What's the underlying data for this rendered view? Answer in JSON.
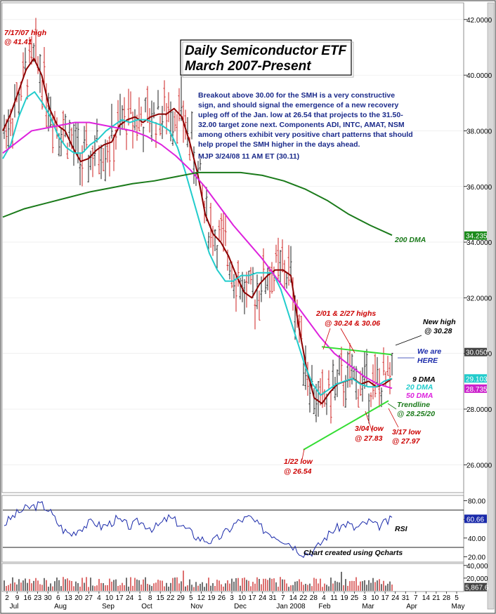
{
  "chart_data": {
    "type": "line",
    "title_line1": "Daily Semiconductor ETF",
    "title_line2": "March 2007-Present",
    "commentary": [
      "Breakout above 30.00 for the SMH is a very constructive",
      "sign, and should signal the emergence of a new recovery",
      "upleg off of the Jan. low at 26.54 that projects to the 31.50-",
      "32.00 target zone next.  Components ADI, INTC, AMAT, NSM",
      "among others exhibit very positive chart patterns that should",
      "help propel the SMH higher in the days ahead.",
      " MJP  3/24/08  11 AM ET  (30.11)"
    ],
    "price_axis": {
      "ylim": [
        25.0,
        42.6
      ],
      "ticks": [
        26,
        28,
        30,
        32,
        34,
        36,
        38,
        40,
        42
      ],
      "tick_labels": [
        "26.0000",
        "28.0000",
        "30.0000",
        "32.0000",
        "34.0000",
        "36.0000",
        "38.0000",
        "40.0000",
        "42.0000"
      ]
    },
    "price_tags": [
      {
        "label": "34.235",
        "value": 34.235,
        "color": "#1a8a1a"
      },
      {
        "label": "30.050",
        "value": 30.05,
        "color": "#444444"
      },
      {
        "label": "29.103",
        "value": 29.103,
        "color": "#22cccc"
      },
      {
        "label": "28.735",
        "value": 28.735,
        "color": "#cc22cc"
      }
    ],
    "x_tick_labels": [
      "2",
      "9",
      "16",
      "23",
      "30",
      "6",
      "13",
      "20",
      "27",
      "4",
      "10",
      "17",
      "24",
      "1",
      "8",
      "15",
      "22",
      "29",
      "5",
      "12",
      "19",
      "26",
      "3",
      "10",
      "17",
      "24",
      "31",
      "7",
      "14",
      "22",
      "28",
      "4",
      "11",
      "19",
      "25",
      "3",
      "10",
      "17",
      "24",
      "31",
      "7",
      "14",
      "21",
      "28",
      "5"
    ],
    "month_labels": [
      "Jul",
      "Aug",
      "Sep",
      "Oct",
      "Nov",
      "Dec",
      "Jan 2008",
      "Feb",
      "Mar",
      "Apr",
      "May"
    ],
    "series": [
      {
        "name": "9 DMA",
        "color": "#8b0000",
        "values": [
          38.0,
          38.6,
          39.4,
          40.2,
          40.6,
          40.0,
          38.8,
          38.2,
          38.0,
          37.4,
          36.9,
          37.0,
          37.3,
          37.5,
          37.6,
          38.2,
          38.4,
          38.5,
          38.3,
          38.5,
          38.6,
          38.6,
          38.8,
          38.5,
          37.6,
          36.5,
          35.0,
          34.3,
          34.0,
          33.5,
          32.8,
          32.2,
          32.0,
          32.5,
          32.8,
          33.0,
          33.0,
          32.8,
          31.0,
          29.5,
          28.4,
          28.2,
          28.6,
          28.9,
          29.0,
          29.1,
          28.9,
          29.0,
          28.8,
          28.9,
          29.1
        ]
      },
      {
        "name": "20 DMA",
        "color": "#22cccc",
        "values": [
          37.0,
          37.5,
          38.5,
          39.2,
          39.4,
          39.0,
          38.5,
          37.8,
          37.4,
          37.2,
          37.2,
          37.5,
          37.7,
          38.0,
          38.2,
          38.4,
          38.3,
          38.4,
          38.4,
          38.3,
          38.2,
          38.0,
          37.4,
          36.5,
          35.5,
          34.5,
          33.6,
          33.0,
          32.6,
          32.6,
          32.8,
          32.8,
          32.9,
          32.9,
          32.9,
          32.3,
          31.4,
          30.5,
          29.6,
          28.9,
          28.5,
          28.7,
          28.9,
          29.0,
          29.1,
          28.9,
          28.8,
          28.8,
          29.0,
          29.1
        ]
      },
      {
        "name": "50 DMA",
        "color": "#dd22dd",
        "values": [
          37.2,
          37.6,
          38.0,
          38.1,
          38.2,
          38.3,
          38.3,
          38.2,
          38.1,
          38.0,
          37.8,
          37.5,
          37.1,
          36.6,
          36.0,
          35.3,
          34.6,
          34.0,
          33.4,
          32.7,
          32.0,
          31.3,
          30.6,
          30.0,
          29.6,
          29.2,
          28.9,
          28.75
        ]
      },
      {
        "name": "200 DMA",
        "color": "#1a7a1a",
        "values": [
          34.9,
          35.2,
          35.4,
          35.6,
          35.8,
          35.95,
          36.1,
          36.2,
          36.35,
          36.5,
          36.5,
          36.5,
          36.4,
          36.2,
          35.9,
          35.5,
          35.0,
          34.6,
          34.25
        ]
      }
    ],
    "trendlines": [
      {
        "name": "upper",
        "color": "#33dd33",
        "from": [
          30.24
        ],
        "to": [
          29.96
        ]
      },
      {
        "name": "Trendline",
        "color": "#33dd33",
        "from": [
          26.54
        ],
        "to": [
          28.3
        ]
      }
    ],
    "annotations": {
      "high_0717": [
        "7/17/07 high",
        "@ 41.41"
      ],
      "highs_feb": [
        "2/01 & 2/27 highs",
        "@ 30.24 & 30.06"
      ],
      "new_high": [
        "New high",
        "@ 30.28"
      ],
      "we_are_here": [
        "We are",
        "HERE"
      ],
      "dma9": "9 DMA",
      "dma20": "20 DMA",
      "dma50": "50 DMA",
      "dma200": "200 DMA",
      "trendline": [
        "Trendline",
        "@ 28.25/20"
      ],
      "low_0304": [
        "3/04 low",
        "@ 27.83"
      ],
      "low_0317": [
        "3/17 low",
        "@ 27.97"
      ],
      "low_0122": [
        "1/22 low",
        "@ 26.54"
      ]
    },
    "rsi": {
      "label": "RSI",
      "ylim": [
        15,
        85
      ],
      "ticks": [
        20,
        40,
        60,
        80
      ],
      "tick_labels": [
        "20.00",
        "40.00",
        "60.00",
        "80.00"
      ],
      "current_label": "60.66",
      "current": 60.66,
      "values": [
        55,
        62,
        68,
        72,
        74,
        76,
        70,
        58,
        48,
        44,
        50,
        54,
        58,
        52,
        55,
        60,
        56,
        52,
        58,
        54,
        50,
        55,
        62,
        58,
        52,
        46,
        40,
        38,
        36,
        42,
        48,
        56,
        60,
        62,
        54,
        48,
        44,
        40,
        36,
        30,
        24,
        24,
        30,
        40,
        48,
        52,
        56,
        50,
        54,
        58,
        52,
        56,
        60
      ]
    },
    "credit": "Chart created using Qcharts",
    "volume": {
      "ylim": [
        0,
        42000
      ],
      "ticks": [
        20000,
        40000
      ],
      "tick_labels": [
        "20,000",
        "40,000"
      ],
      "current_label": "5,867.6",
      "current": 5867.6
    }
  }
}
